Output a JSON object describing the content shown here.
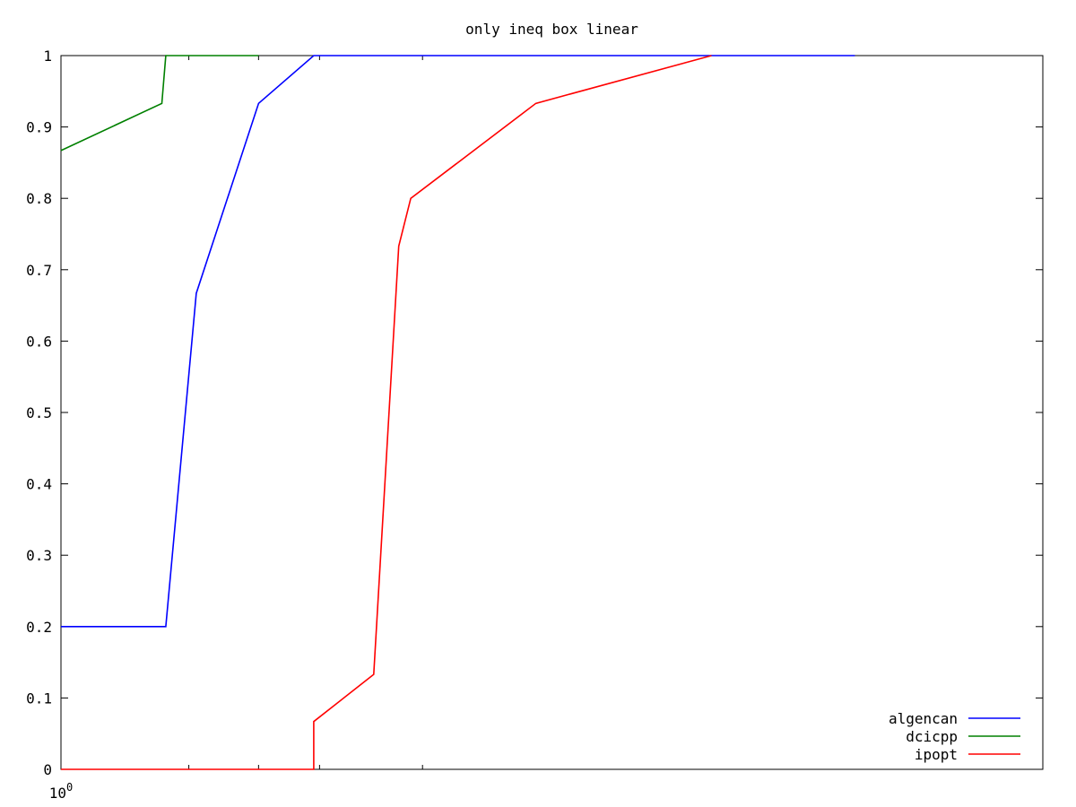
{
  "chart_data": {
    "type": "line",
    "title": "only ineq box linear",
    "xlabel": "",
    "ylabel": "",
    "x_scale": "log",
    "xlim": [
      1,
      7.5
    ],
    "ylim": [
      0,
      1
    ],
    "x_tick_labels": [
      {
        "base": "10",
        "exp": "0"
      }
    ],
    "x_tick_positions": [
      1.0,
      1.3,
      1.5,
      1.7,
      2.1
    ],
    "y_ticks": [
      0,
      0.1,
      0.2,
      0.3,
      0.4,
      0.5,
      0.6,
      0.7,
      0.8,
      0.9,
      1
    ],
    "y_tick_labels": [
      "0",
      "0.1",
      "0.2",
      "0.3",
      "0.4",
      "0.5",
      "0.6",
      "0.7",
      "0.8",
      "0.9",
      "1"
    ],
    "grid": false,
    "legend_position": "bottom-right",
    "series": [
      {
        "name": "algencan",
        "color": "#0000ff",
        "points": [
          [
            1.0,
            0.2
          ],
          [
            1.24,
            0.2
          ],
          [
            1.32,
            0.667
          ],
          [
            1.5,
            0.933
          ],
          [
            1.68,
            1.0
          ],
          [
            5.1,
            1.0
          ]
        ]
      },
      {
        "name": "dcicpp",
        "color": "#008000",
        "points": [
          [
            1.0,
            0.867
          ],
          [
            1.23,
            0.933
          ],
          [
            1.24,
            1.0
          ],
          [
            1.5,
            1.0
          ]
        ]
      },
      {
        "name": "ipopt",
        "color": "#ff0000",
        "points": [
          [
            1.0,
            0.0
          ],
          [
            1.68,
            0.0
          ],
          [
            1.68,
            0.067
          ],
          [
            1.9,
            0.133
          ],
          [
            2.0,
            0.733
          ],
          [
            2.05,
            0.8
          ],
          [
            2.65,
            0.933
          ],
          [
            3.8,
            1.0
          ]
        ]
      }
    ]
  }
}
